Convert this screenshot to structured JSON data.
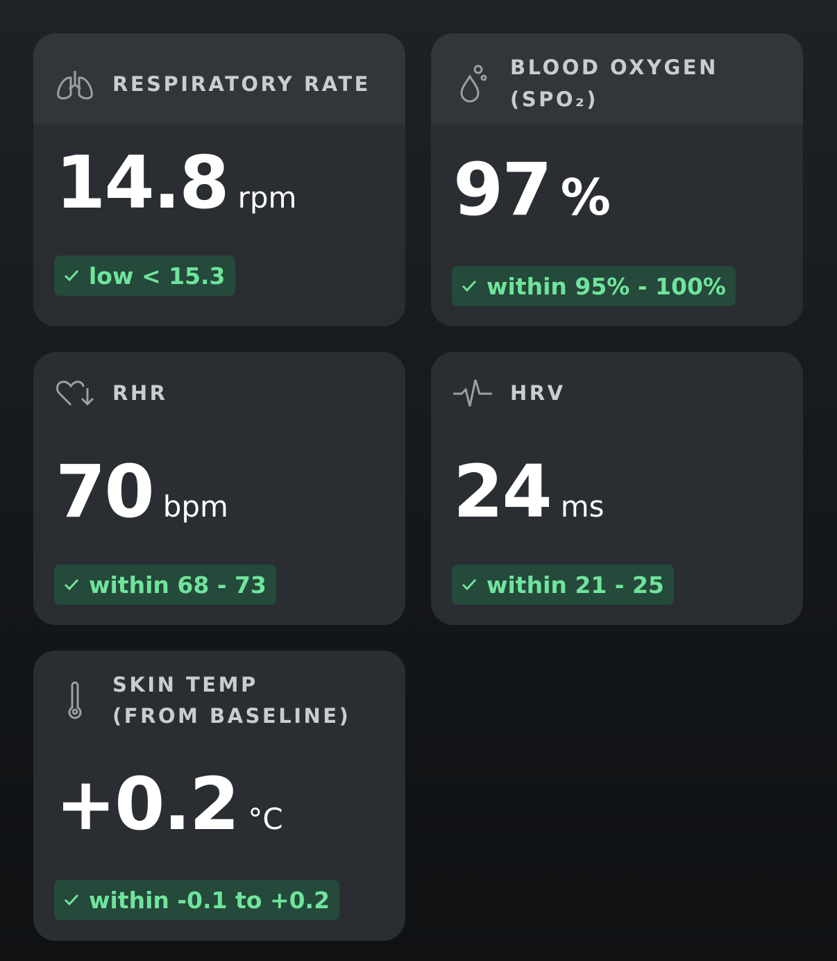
{
  "cards": [
    {
      "title": [
        "RESPIRATORY RATE"
      ],
      "value": "14.8",
      "unit": "rpm",
      "badge": "low < 15.3"
    },
    {
      "title": [
        "BLOOD OXYGEN",
        "(SPO₂)"
      ],
      "value": "97",
      "unit": "%",
      "badge": "within 95% - 100%"
    },
    {
      "title": [
        "RHR"
      ],
      "value": "70",
      "unit": "bpm",
      "badge": "within 68 - 73"
    },
    {
      "title": [
        "HRV"
      ],
      "value": "24",
      "unit": "ms",
      "badge": "within 21 - 25"
    },
    {
      "title": [
        "SKIN TEMP",
        "(FROM BASELINE)"
      ],
      "value": "+0.2",
      "unit": "°C",
      "badge": "within -0.1 to +0.2"
    }
  ]
}
